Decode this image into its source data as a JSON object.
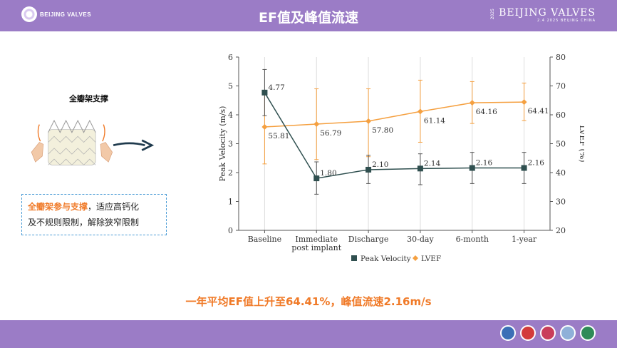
{
  "header": {
    "title": "EF值及峰值流速",
    "logo_left_text": "BEIJING VALVES",
    "logo_right_text": "BEIJING VALVES",
    "logo_right_subtext": "2.4 2025 BEIJING CHINA",
    "logo_right_year": "2025"
  },
  "left_panel": {
    "valve_title": "全瓣架支撑",
    "note_highlight": "全瓣架参与支撑",
    "note_rest_line1": "，适应高钙化",
    "note_line2": "及不规则限制，解除狭窄限制"
  },
  "caption": "一年平均EF值上升至64.41%，峰值流速2.16m/s",
  "colors": {
    "band": "#9b7cc6",
    "peak_velocity": "#2f4f4f",
    "lvef": "#f5a040",
    "accent_text": "#f07a28"
  },
  "chart_data": {
    "type": "line",
    "categories": [
      "Baseline",
      "Immediate post implant",
      "Discharge",
      "30-day",
      "6-month",
      "1-year"
    ],
    "category_lines": [
      [
        "Baseline"
      ],
      [
        "Immediate",
        "post implant"
      ],
      [
        "Discharge"
      ],
      [
        "30-day"
      ],
      [
        "6-month"
      ],
      [
        "1-year"
      ]
    ],
    "ylabel": "Peak Velocity (m/s)",
    "y2label": "LVEF (%)",
    "ylim": [
      0,
      6
    ],
    "y2lim": [
      20,
      80
    ],
    "yticks": [
      "0",
      "1",
      "2",
      "3",
      "4",
      "5",
      "6"
    ],
    "y2ticks": [
      "20",
      "30",
      "40",
      "50",
      "60",
      "70",
      "80"
    ],
    "series": [
      {
        "name": "Peak Velocity",
        "axis": "left",
        "marker": "square",
        "values": [
          4.77,
          1.8,
          2.1,
          2.14,
          2.16,
          2.16
        ],
        "labels": [
          "4.77",
          "1.80",
          "2.10",
          "2.14",
          "2.16",
          "2.16"
        ],
        "error_low": [
          3.97,
          1.25,
          1.62,
          1.58,
          1.62,
          1.62
        ],
        "error_high": [
          5.57,
          2.37,
          2.6,
          2.65,
          2.7,
          2.7
        ]
      },
      {
        "name": "LVEF",
        "axis": "right",
        "marker": "diamond",
        "values": [
          55.81,
          56.79,
          57.8,
          61.14,
          64.16,
          64.41
        ],
        "labels": [
          "55.81",
          "56.79",
          "57.80",
          "61.14",
          "64.16",
          "64.41"
        ],
        "error_low": [
          43.0,
          44.5,
          45.5,
          50.5,
          57.0,
          58.0
        ],
        "error_high": [
          68.5,
          69.0,
          69.0,
          72.0,
          71.5,
          71.0
        ]
      }
    ],
    "grid": "vertical",
    "legend": "bottom-center"
  }
}
